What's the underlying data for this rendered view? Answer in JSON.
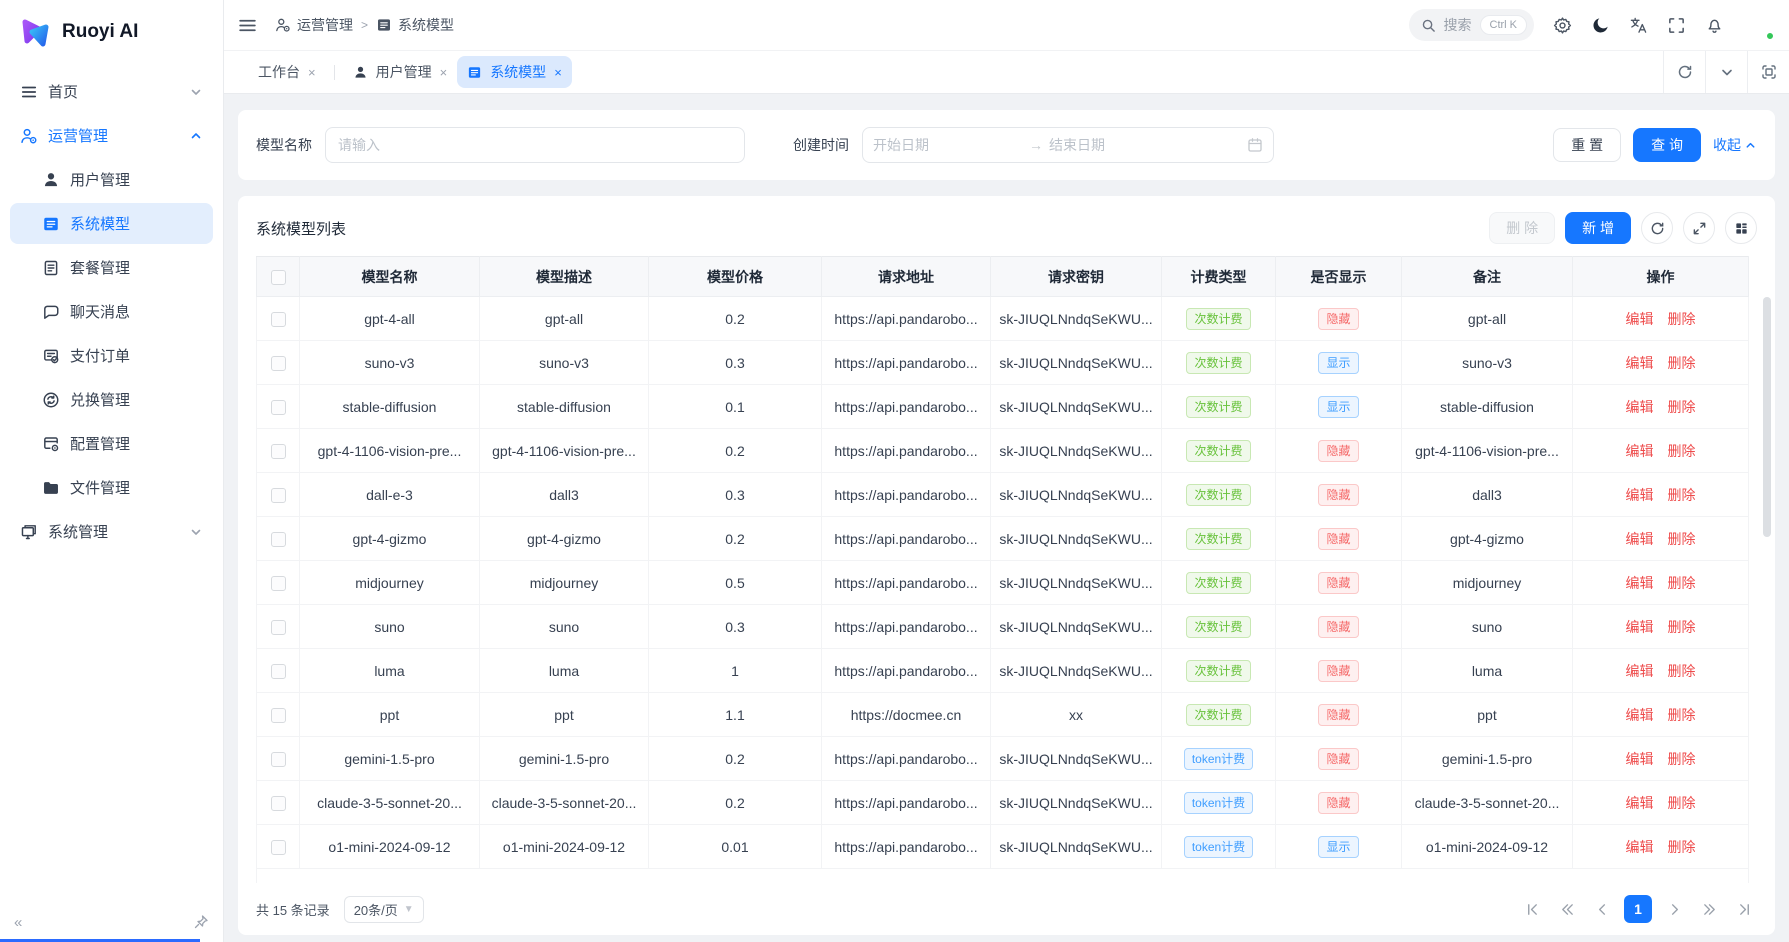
{
  "colors": {
    "primary": "#1677ff",
    "success": "#67c23a",
    "danger": "#f56c6c",
    "info": "#409eff"
  },
  "sidebar": {
    "logo_text": "Ruoyi AI",
    "home": {
      "label": "首页",
      "icon": "menu-lines"
    },
    "operations": {
      "label": "运营管理",
      "icon": "user-gear",
      "children": [
        {
          "label": "用户管理",
          "icon": "user-fill",
          "selected": false
        },
        {
          "label": "系统模型",
          "icon": "list-fill",
          "selected": true
        },
        {
          "label": "套餐管理",
          "icon": "doc-lines",
          "selected": false
        },
        {
          "label": "聊天消息",
          "icon": "chat",
          "selected": false
        },
        {
          "label": "支付订单",
          "icon": "receipt",
          "selected": false
        },
        {
          "label": "兑换管理",
          "icon": "sync",
          "selected": false
        },
        {
          "label": "配置管理",
          "icon": "panel-gear",
          "selected": false
        },
        {
          "label": "文件管理",
          "icon": "folder-fill",
          "selected": false
        }
      ]
    },
    "system": {
      "label": "系统管理",
      "icon": "monitor"
    }
  },
  "header": {
    "breadcrumb": [
      {
        "label": "运营管理"
      },
      {
        "label": "系统模型"
      }
    ],
    "search": {
      "placeholder": "搜索",
      "shortcut": "Ctrl K"
    }
  },
  "tabs": [
    {
      "label": "工作台"
    },
    {
      "label": "用户管理"
    },
    {
      "label": "系统模型"
    }
  ],
  "filter": {
    "model_name_label": "模型名称",
    "model_name_placeholder": "请输入",
    "create_time_label": "创建时间",
    "start_placeholder": "开始日期",
    "end_placeholder": "结束日期",
    "reset_label": "重 置",
    "search_label": "查 询",
    "collapse_label": "收起"
  },
  "table": {
    "title": "系统模型列表",
    "delete_btn": "删 除",
    "add_btn": "新 增",
    "columns": [
      "模型名称",
      "模型描述",
      "模型价格",
      "请求地址",
      "请求密钥",
      "计费类型",
      "是否显示",
      "备注",
      "操作"
    ],
    "action_edit": "编辑",
    "action_delete": "删除",
    "rows": [
      {
        "name": "gpt-4-all",
        "desc": "gpt-all",
        "price": "0.2",
        "url": "https://api.pandarobo...",
        "key": "sk-JIUQLNndqSeKWU...",
        "billing": "次数计费",
        "billing_style": "green",
        "visibility": "隐藏",
        "visibility_style": "red",
        "remark": "gpt-all"
      },
      {
        "name": "suno-v3",
        "desc": "suno-v3",
        "price": "0.3",
        "url": "https://api.pandarobo...",
        "key": "sk-JIUQLNndqSeKWU...",
        "billing": "次数计费",
        "billing_style": "green",
        "visibility": "显示",
        "visibility_style": "blue",
        "remark": "suno-v3"
      },
      {
        "name": "stable-diffusion",
        "desc": "stable-diffusion",
        "price": "0.1",
        "url": "https://api.pandarobo...",
        "key": "sk-JIUQLNndqSeKWU...",
        "billing": "次数计费",
        "billing_style": "green",
        "visibility": "显示",
        "visibility_style": "blue",
        "remark": "stable-diffusion"
      },
      {
        "name": "gpt-4-1106-vision-pre...",
        "desc": "gpt-4-1106-vision-pre...",
        "price": "0.2",
        "url": "https://api.pandarobo...",
        "key": "sk-JIUQLNndqSeKWU...",
        "billing": "次数计费",
        "billing_style": "green",
        "visibility": "隐藏",
        "visibility_style": "red",
        "remark": "gpt-4-1106-vision-pre..."
      },
      {
        "name": "dall-e-3",
        "desc": "dall3",
        "price": "0.3",
        "url": "https://api.pandarobo...",
        "key": "sk-JIUQLNndqSeKWU...",
        "billing": "次数计费",
        "billing_style": "green",
        "visibility": "隐藏",
        "visibility_style": "red",
        "remark": "dall3"
      },
      {
        "name": "gpt-4-gizmo",
        "desc": "gpt-4-gizmo",
        "price": "0.2",
        "url": "https://api.pandarobo...",
        "key": "sk-JIUQLNndqSeKWU...",
        "billing": "次数计费",
        "billing_style": "green",
        "visibility": "隐藏",
        "visibility_style": "red",
        "remark": "gpt-4-gizmo"
      },
      {
        "name": "midjourney",
        "desc": "midjourney",
        "price": "0.5",
        "url": "https://api.pandarobo...",
        "key": "sk-JIUQLNndqSeKWU...",
        "billing": "次数计费",
        "billing_style": "green",
        "visibility": "隐藏",
        "visibility_style": "red",
        "remark": "midjourney"
      },
      {
        "name": "suno",
        "desc": "suno",
        "price": "0.3",
        "url": "https://api.pandarobo...",
        "key": "sk-JIUQLNndqSeKWU...",
        "billing": "次数计费",
        "billing_style": "green",
        "visibility": "隐藏",
        "visibility_style": "red",
        "remark": "suno"
      },
      {
        "name": "luma",
        "desc": "luma",
        "price": "1",
        "url": "https://api.pandarobo...",
        "key": "sk-JIUQLNndqSeKWU...",
        "billing": "次数计费",
        "billing_style": "green",
        "visibility": "隐藏",
        "visibility_style": "red",
        "remark": "luma"
      },
      {
        "name": "ppt",
        "desc": "ppt",
        "price": "1.1",
        "url": "https://docmee.cn",
        "key": "xx",
        "billing": "次数计费",
        "billing_style": "green",
        "visibility": "隐藏",
        "visibility_style": "red",
        "remark": "ppt"
      },
      {
        "name": "gemini-1.5-pro",
        "desc": "gemini-1.5-pro",
        "price": "0.2",
        "url": "https://api.pandarobo...",
        "key": "sk-JIUQLNndqSeKWU...",
        "billing": "token计费",
        "billing_style": "blue",
        "visibility": "隐藏",
        "visibility_style": "red",
        "remark": "gemini-1.5-pro"
      },
      {
        "name": "claude-3-5-sonnet-20...",
        "desc": "claude-3-5-sonnet-20...",
        "price": "0.2",
        "url": "https://api.pandarobo...",
        "key": "sk-JIUQLNndqSeKWU...",
        "billing": "token计费",
        "billing_style": "blue",
        "visibility": "隐藏",
        "visibility_style": "red",
        "remark": "claude-3-5-sonnet-20..."
      },
      {
        "name": "o1-mini-2024-09-12",
        "desc": "o1-mini-2024-09-12",
        "price": "0.01",
        "url": "https://api.pandarobo...",
        "key": "sk-JIUQLNndqSeKWU...",
        "billing": "token计费",
        "billing_style": "blue",
        "visibility": "显示",
        "visibility_style": "blue",
        "remark": "o1-mini-2024-09-12"
      }
    ]
  },
  "pagination": {
    "total_text": "共 15 条记录",
    "page_size": "20条/页",
    "current_page": "1"
  }
}
